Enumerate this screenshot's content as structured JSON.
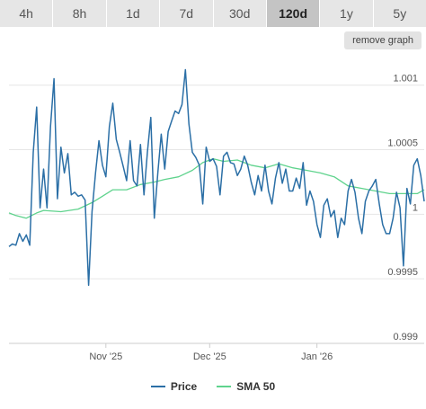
{
  "tabs": [
    {
      "label": "4h",
      "active": false
    },
    {
      "label": "8h",
      "active": false
    },
    {
      "label": "1d",
      "active": false
    },
    {
      "label": "7d",
      "active": false
    },
    {
      "label": "30d",
      "active": false
    },
    {
      "label": "120d",
      "active": true
    },
    {
      "label": "1y",
      "active": false
    },
    {
      "label": "5y",
      "active": false
    }
  ],
  "remove_graph_label": "remove graph",
  "colors": {
    "price": "#2b6fa6",
    "sma": "#5fd38d"
  },
  "chart_data": {
    "type": "line",
    "title": "",
    "xlabel": "",
    "ylabel": "",
    "ylim": [
      0.999,
      1.0012
    ],
    "y_ticks": [
      {
        "value": 1.001,
        "label": "1.001"
      },
      {
        "value": 1.0005,
        "label": "1.0005"
      },
      {
        "value": 1.0,
        "label": "1"
      },
      {
        "value": 0.9995,
        "label": "0.9995"
      },
      {
        "value": 0.999,
        "label": "0.999"
      }
    ],
    "x_range": [
      0,
      120
    ],
    "x_ticks": [
      {
        "value": 28,
        "label": "Nov '25"
      },
      {
        "value": 58,
        "label": "Dec '25"
      },
      {
        "value": 89,
        "label": "Jan '26"
      }
    ],
    "grid": true,
    "legend_position": "bottom",
    "series": [
      {
        "name": "Price",
        "values": [
          [
            0,
            0.99975
          ],
          [
            1,
            0.99977
          ],
          [
            2,
            0.99976
          ],
          [
            3,
            0.99985
          ],
          [
            4,
            0.99979
          ],
          [
            5,
            0.99984
          ],
          [
            6,
            0.99976
          ],
          [
            7,
            1.00048
          ],
          [
            8,
            1.00083
          ],
          [
            9,
            1.00005
          ],
          [
            10,
            1.00035
          ],
          [
            11,
            1.00005
          ],
          [
            12,
            1.00068
          ],
          [
            13,
            1.00105
          ],
          [
            14,
            1.00012
          ],
          [
            15,
            1.00052
          ],
          [
            16,
            1.00032
          ],
          [
            17,
            1.00047
          ],
          [
            18,
            1.00015
          ],
          [
            19,
            1.00017
          ],
          [
            20,
            1.00014
          ],
          [
            21,
            1.00015
          ],
          [
            22,
            1.00011
          ],
          [
            23,
            0.99945
          ],
          [
            24,
            1.00002
          ],
          [
            25,
            1.00032
          ],
          [
            26,
            1.00057
          ],
          [
            27,
            1.00038
          ],
          [
            28,
            1.00029
          ],
          [
            29,
            1.00068
          ],
          [
            30,
            1.00086
          ],
          [
            31,
            1.00058
          ],
          [
            32,
            1.00048
          ],
          [
            33,
            1.00037
          ],
          [
            34,
            1.00026
          ],
          [
            35,
            1.00057
          ],
          [
            36,
            1.00026
          ],
          [
            37,
            1.00022
          ],
          [
            38,
            1.00054
          ],
          [
            39,
            1.00015
          ],
          [
            40,
            1.00048
          ],
          [
            41,
            1.00075
          ],
          [
            42,
            0.99997
          ],
          [
            43,
            1.00032
          ],
          [
            44,
            1.00062
          ],
          [
            45,
            1.00035
          ],
          [
            46,
            1.00064
          ],
          [
            47,
            1.00072
          ],
          [
            48,
            1.0008
          ],
          [
            49,
            1.00078
          ],
          [
            50,
            1.00085
          ],
          [
            51,
            1.00112
          ],
          [
            52,
            1.0007
          ],
          [
            53,
            1.00048
          ],
          [
            54,
            1.00044
          ],
          [
            55,
            1.00038
          ],
          [
            56,
            1.00008
          ],
          [
            57,
            1.00052
          ],
          [
            58,
            1.00041
          ],
          [
            59,
            1.00043
          ],
          [
            60,
            1.00037
          ],
          [
            61,
            1.00015
          ],
          [
            62,
            1.00045
          ],
          [
            63,
            1.00048
          ],
          [
            64,
            1.0004
          ],
          [
            65,
            1.00039
          ],
          [
            66,
            1.0003
          ],
          [
            67,
            1.00035
          ],
          [
            68,
            1.00045
          ],
          [
            69,
            1.00038
          ],
          [
            70,
            1.00025
          ],
          [
            71,
            1.00015
          ],
          [
            72,
            1.0003
          ],
          [
            73,
            1.00018
          ],
          [
            74,
            1.00038
          ],
          [
            75,
            1.00018
          ],
          [
            76,
            1.00008
          ],
          [
            77,
            1.00028
          ],
          [
            78,
            1.0004
          ],
          [
            79,
            1.00024
          ],
          [
            80,
            1.00035
          ],
          [
            81,
            1.00018
          ],
          [
            82,
            1.00018
          ],
          [
            83,
            1.00028
          ],
          [
            84,
            1.0002
          ],
          [
            85,
            1.0004
          ],
          [
            86,
            1.00007
          ],
          [
            87,
            1.00018
          ],
          [
            88,
            1.0001
          ],
          [
            89,
            0.99992
          ],
          [
            90,
            0.99982
          ],
          [
            91,
            1.00007
          ],
          [
            92,
            1.00012
          ],
          [
            93,
            0.99998
          ],
          [
            94,
            1.00003
          ],
          [
            95,
            0.99982
          ],
          [
            96,
            0.99997
          ],
          [
            97,
            0.99992
          ],
          [
            98,
            1.00018
          ],
          [
            99,
            1.00027
          ],
          [
            100,
            1.00017
          ],
          [
            101,
            0.99997
          ],
          [
            102,
            0.99985
          ],
          [
            103,
            1.0001
          ],
          [
            104,
            1.00018
          ],
          [
            105,
            1.00022
          ],
          [
            106,
            1.00027
          ],
          [
            107,
            1.00008
          ],
          [
            108,
            0.99992
          ],
          [
            109,
            0.99985
          ],
          [
            110,
            0.99985
          ],
          [
            111,
            0.99997
          ],
          [
            112,
            1.00017
          ],
          [
            113,
            1.00005
          ],
          [
            114,
            0.9996
          ],
          [
            115,
            1.0002
          ],
          [
            116,
            1.00008
          ],
          [
            117,
            1.00038
          ],
          [
            118,
            1.00043
          ],
          [
            119,
            1.0003
          ],
          [
            120,
            1.0001
          ]
        ]
      },
      {
        "name": "SMA 50",
        "values": [
          [
            0,
            1.00001
          ],
          [
            2,
            0.99999
          ],
          [
            5,
            0.99997
          ],
          [
            8,
            1.00001
          ],
          [
            10,
            1.00003
          ],
          [
            15,
            1.00002
          ],
          [
            20,
            1.00004
          ],
          [
            24,
            1.00009
          ],
          [
            27,
            1.00014
          ],
          [
            30,
            1.00019
          ],
          [
            34,
            1.00019
          ],
          [
            38,
            1.00023
          ],
          [
            42,
            1.00025
          ],
          [
            45,
            1.00027
          ],
          [
            49,
            1.00029
          ],
          [
            53,
            1.00034
          ],
          [
            56,
            1.0004
          ],
          [
            59,
            1.00043
          ],
          [
            62,
            1.00041
          ],
          [
            66,
            1.00042
          ],
          [
            70,
            1.00038
          ],
          [
            74,
            1.00036
          ],
          [
            78,
            1.00039
          ],
          [
            82,
            1.00036
          ],
          [
            86,
            1.00034
          ],
          [
            90,
            1.00032
          ],
          [
            94,
            1.00029
          ],
          [
            98,
            1.00022
          ],
          [
            102,
            1.0002
          ],
          [
            106,
            1.00018
          ],
          [
            110,
            1.00016
          ],
          [
            114,
            1.00016
          ],
          [
            118,
            1.00016
          ],
          [
            120,
            1.00019
          ]
        ]
      }
    ]
  }
}
